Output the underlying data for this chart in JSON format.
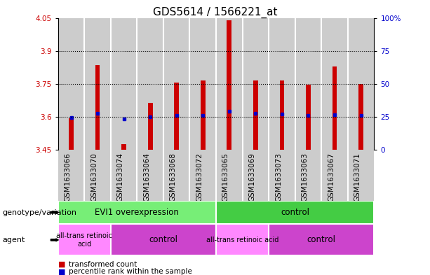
{
  "title": "GDS5614 / 1566221_at",
  "samples": [
    "GSM1633066",
    "GSM1633070",
    "GSM1633074",
    "GSM1633064",
    "GSM1633068",
    "GSM1633072",
    "GSM1633065",
    "GSM1633069",
    "GSM1633073",
    "GSM1633063",
    "GSM1633067",
    "GSM1633071"
  ],
  "bar_bottom": 3.45,
  "transformed_counts": [
    3.595,
    3.835,
    3.475,
    3.665,
    3.755,
    3.765,
    4.04,
    3.765,
    3.765,
    3.745,
    3.83,
    3.75
  ],
  "percentile_ranks": [
    3.598,
    3.617,
    3.592,
    3.6,
    3.607,
    3.607,
    3.627,
    3.617,
    3.613,
    3.607,
    3.61,
    3.607
  ],
  "ylim_left": [
    3.45,
    4.05
  ],
  "ylim_right": [
    0,
    100
  ],
  "yticks_left": [
    3.45,
    3.6,
    3.75,
    3.9,
    4.05
  ],
  "yticks_right": [
    0,
    25,
    50,
    75,
    100
  ],
  "bar_color": "#cc0000",
  "dot_color": "#0000cc",
  "col_bg_color": "#cccccc",
  "plot_bg": "#ffffff",
  "grid_color": "#000000",
  "genotype_groups": [
    {
      "label": "EVI1 overexpression",
      "start": 0,
      "end": 6,
      "color": "#77ee77"
    },
    {
      "label": "control",
      "start": 6,
      "end": 12,
      "color": "#44cc44"
    }
  ],
  "agent_groups": [
    {
      "label": "all-trans retinoic\nacid",
      "start": 0,
      "end": 2,
      "color": "#ff88ff"
    },
    {
      "label": "control",
      "start": 2,
      "end": 6,
      "color": "#cc44cc"
    },
    {
      "label": "all-trans retinoic acid",
      "start": 6,
      "end": 8,
      "color": "#ff88ff"
    },
    {
      "label": "control",
      "start": 8,
      "end": 12,
      "color": "#cc44cc"
    }
  ],
  "legend_items": [
    {
      "color": "#cc0000",
      "label": "transformed count"
    },
    {
      "color": "#0000cc",
      "label": "percentile rank within the sample"
    }
  ],
  "left_label_color": "#cc0000",
  "right_label_color": "#0000cc",
  "title_fontsize": 11,
  "tick_fontsize": 7.5,
  "row_label_fontsize": 8,
  "legend_fontsize": 7.5
}
